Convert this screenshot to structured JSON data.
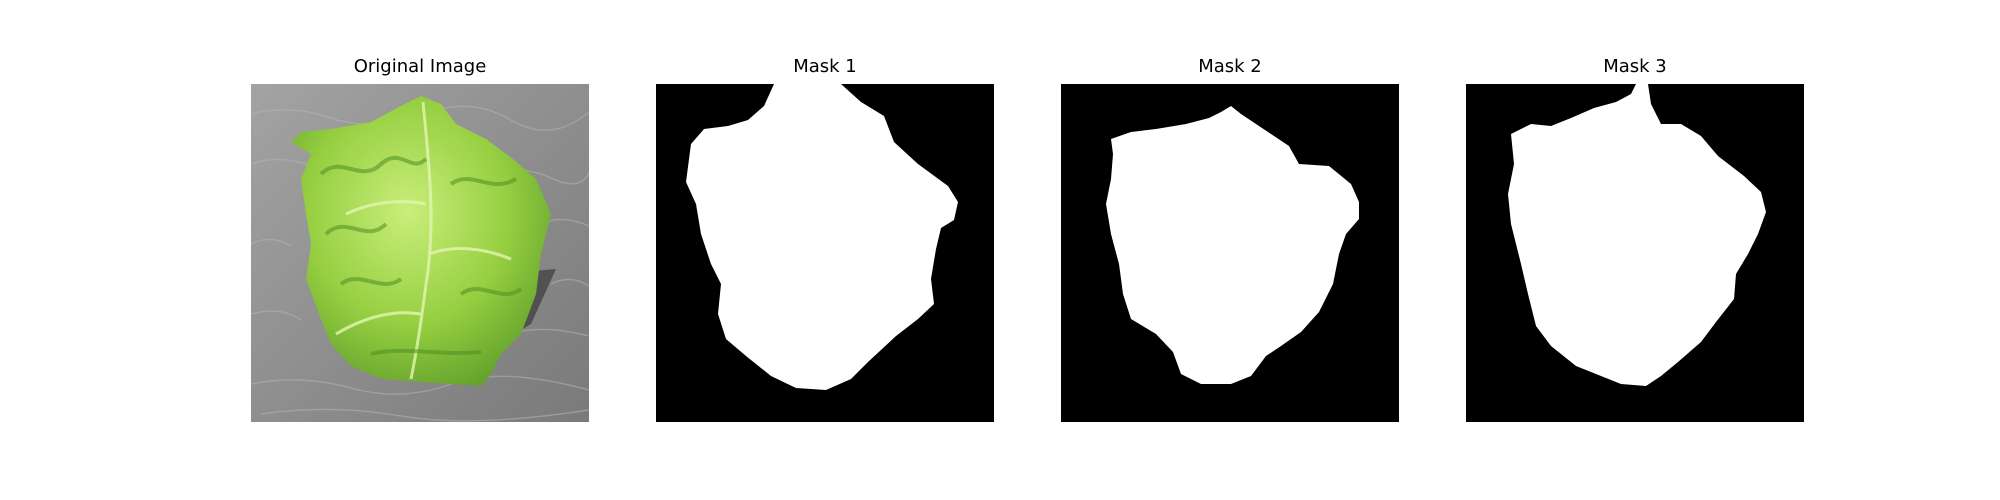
{
  "figure": {
    "panels": [
      {
        "title": "Original Image"
      },
      {
        "title": "Mask 1"
      },
      {
        "title": "Mask 2"
      },
      {
        "title": "Mask 3"
      }
    ]
  },
  "colors": {
    "figure_background": "#ffffff",
    "mask_background": "#000000",
    "mask_foreground": "#ffffff",
    "photo_background": "#8e8e8e",
    "leaf_light": "#b9e26a",
    "leaf_mid": "#8fcb3c",
    "leaf_dark": "#4f8f24"
  }
}
